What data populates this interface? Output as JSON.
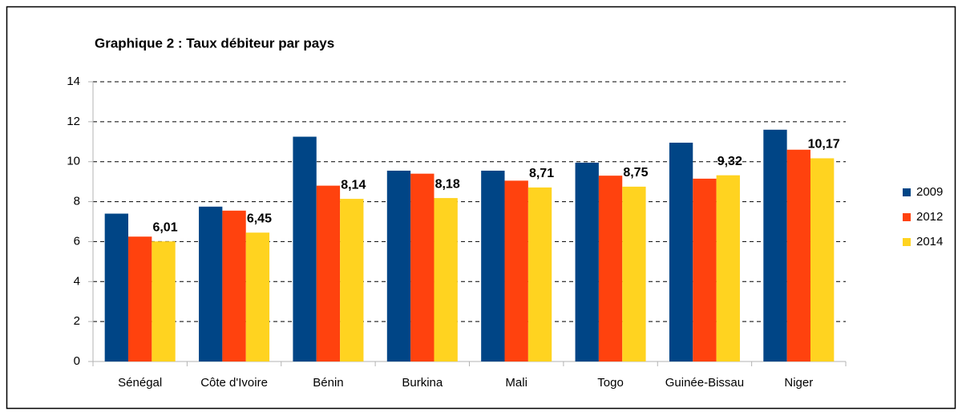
{
  "chart_data": {
    "type": "bar",
    "title": "Graphique 2 : Taux débiteur par pays",
    "categories": [
      "Sénégal",
      "Côte d'Ivoire",
      "Bénin",
      "Burkina",
      "Mali",
      "Togo",
      "Guinée-Bissau",
      "Niger"
    ],
    "series": [
      {
        "name": "2009",
        "color": "#004586",
        "values": [
          7.4,
          7.75,
          11.25,
          9.55,
          9.55,
          9.95,
          10.95,
          11.6
        ]
      },
      {
        "name": "2012",
        "color": "#ff420e",
        "values": [
          6.25,
          7.55,
          8.8,
          9.4,
          9.05,
          9.3,
          9.15,
          10.6
        ]
      },
      {
        "name": "2014",
        "color": "#ffd320",
        "values": [
          6.01,
          6.45,
          8.14,
          8.18,
          8.71,
          8.75,
          9.32,
          10.17
        ],
        "value_labels": [
          "6,01",
          "6,45",
          "8,14",
          "8,18",
          "8,71",
          "8,75",
          "9,32",
          "10,17"
        ]
      }
    ],
    "ylim": [
      0,
      14
    ],
    "yticks": [
      0,
      2,
      4,
      6,
      8,
      10,
      12,
      14
    ],
    "grid": true,
    "legend": "right"
  }
}
